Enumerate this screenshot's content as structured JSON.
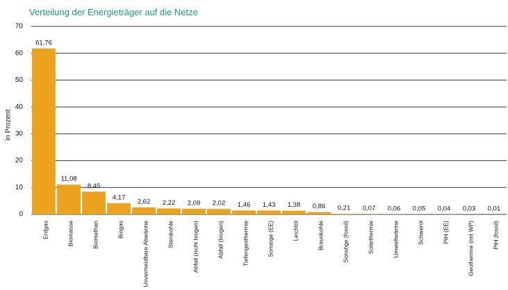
{
  "chart_data": {
    "type": "bar",
    "title": "Verteilung der Energieträger auf die Netze",
    "y_label": "in Prozent",
    "categories": [
      "Erdgas",
      "Biomasse",
      "Biomethan",
      "Biogas",
      "Unvermeidbare Abwärme",
      "Steinkohle",
      "Abfall (nicht biogen)",
      "Abfall (biogen)",
      "Tiefengeothermie",
      "Sonstige (EE)",
      "Leichtöl",
      "Braunkohle",
      "Sonstige (fossil)",
      "Solarthermie",
      "Umweltwärme",
      "Schweröl",
      "PtH (EE)",
      "Geothermie (mit WP)",
      "PtH (fossil)"
    ],
    "values": [
      61.76,
      11.08,
      8.45,
      4.17,
      2.62,
      2.22,
      2.09,
      2.02,
      1.46,
      1.43,
      1.38,
      0.86,
      0.21,
      0.07,
      0.06,
      0.05,
      0.04,
      0.03,
      0.01
    ],
    "value_labels": [
      "61,76",
      "11,08",
      "8,45",
      "4,17",
      "2,62",
      "2,22",
      "2,09",
      "2,02",
      "1,46",
      "1,43",
      "1,38",
      "0,86",
      "0,21",
      "0,07",
      "0,06",
      "0,05",
      "0,04",
      "0,03",
      "0,01"
    ],
    "color": "#eba21e",
    "ylim": [
      0,
      70
    ],
    "yticks": [
      0,
      10,
      20,
      30,
      40,
      50,
      60,
      70
    ],
    "grid": true
  }
}
